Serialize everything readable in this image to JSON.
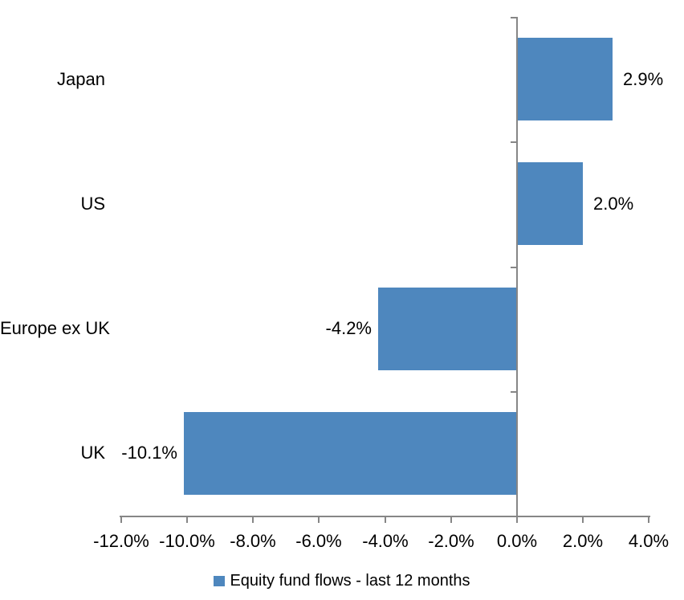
{
  "chart_data": {
    "type": "bar",
    "orientation": "horizontal",
    "title": "",
    "categories": [
      "Japan",
      "US",
      "Europe ex UK",
      "UK"
    ],
    "series": [
      {
        "name": "Equity fund flows - last 12 months",
        "values": [
          2.9,
          2.0,
          -4.2,
          -10.1
        ],
        "value_labels": [
          "2.9%",
          "2.0%",
          "-4.2%",
          "-10.1%"
        ]
      }
    ],
    "xlabel": "",
    "ylabel": "",
    "xlim": [
      -12,
      4
    ],
    "x_ticks": [
      {
        "value": -12,
        "label": "-12.0%"
      },
      {
        "value": -10,
        "label": "-10.0%"
      },
      {
        "value": -8,
        "label": "-8.0%"
      },
      {
        "value": -6,
        "label": "-6.0%"
      },
      {
        "value": -4,
        "label": "-4.0%"
      },
      {
        "value": -2,
        "label": "-2.0%"
      },
      {
        "value": 0,
        "label": "0.0%"
      },
      {
        "value": 2,
        "label": "2.0%"
      },
      {
        "value": 4,
        "label": "4.0%"
      }
    ],
    "grid": false,
    "legend": {
      "position": "bottom",
      "label": "Equity fund flows - last 12 months"
    },
    "colors": {
      "bar": "#4E87BE",
      "axis": "#868686",
      "text": "#000000",
      "background": "#FFFFFF"
    }
  }
}
